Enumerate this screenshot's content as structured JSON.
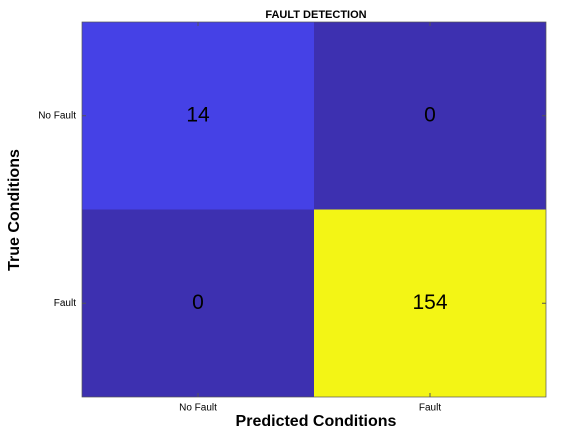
{
  "chart_data": {
    "type": "heatmap",
    "title": "FAULT DETECTION",
    "xlabel": "Predicted Conditions",
    "ylabel": "True Conditions",
    "x_categories": [
      "No Fault",
      "Fault"
    ],
    "y_categories": [
      "No Fault",
      "Fault"
    ],
    "values": [
      [
        14,
        0
      ],
      [
        0,
        154
      ]
    ],
    "cell_colors": [
      [
        "#4541e6",
        "#3d30b0"
      ],
      [
        "#3d30b0",
        "#f3f515"
      ]
    ]
  }
}
